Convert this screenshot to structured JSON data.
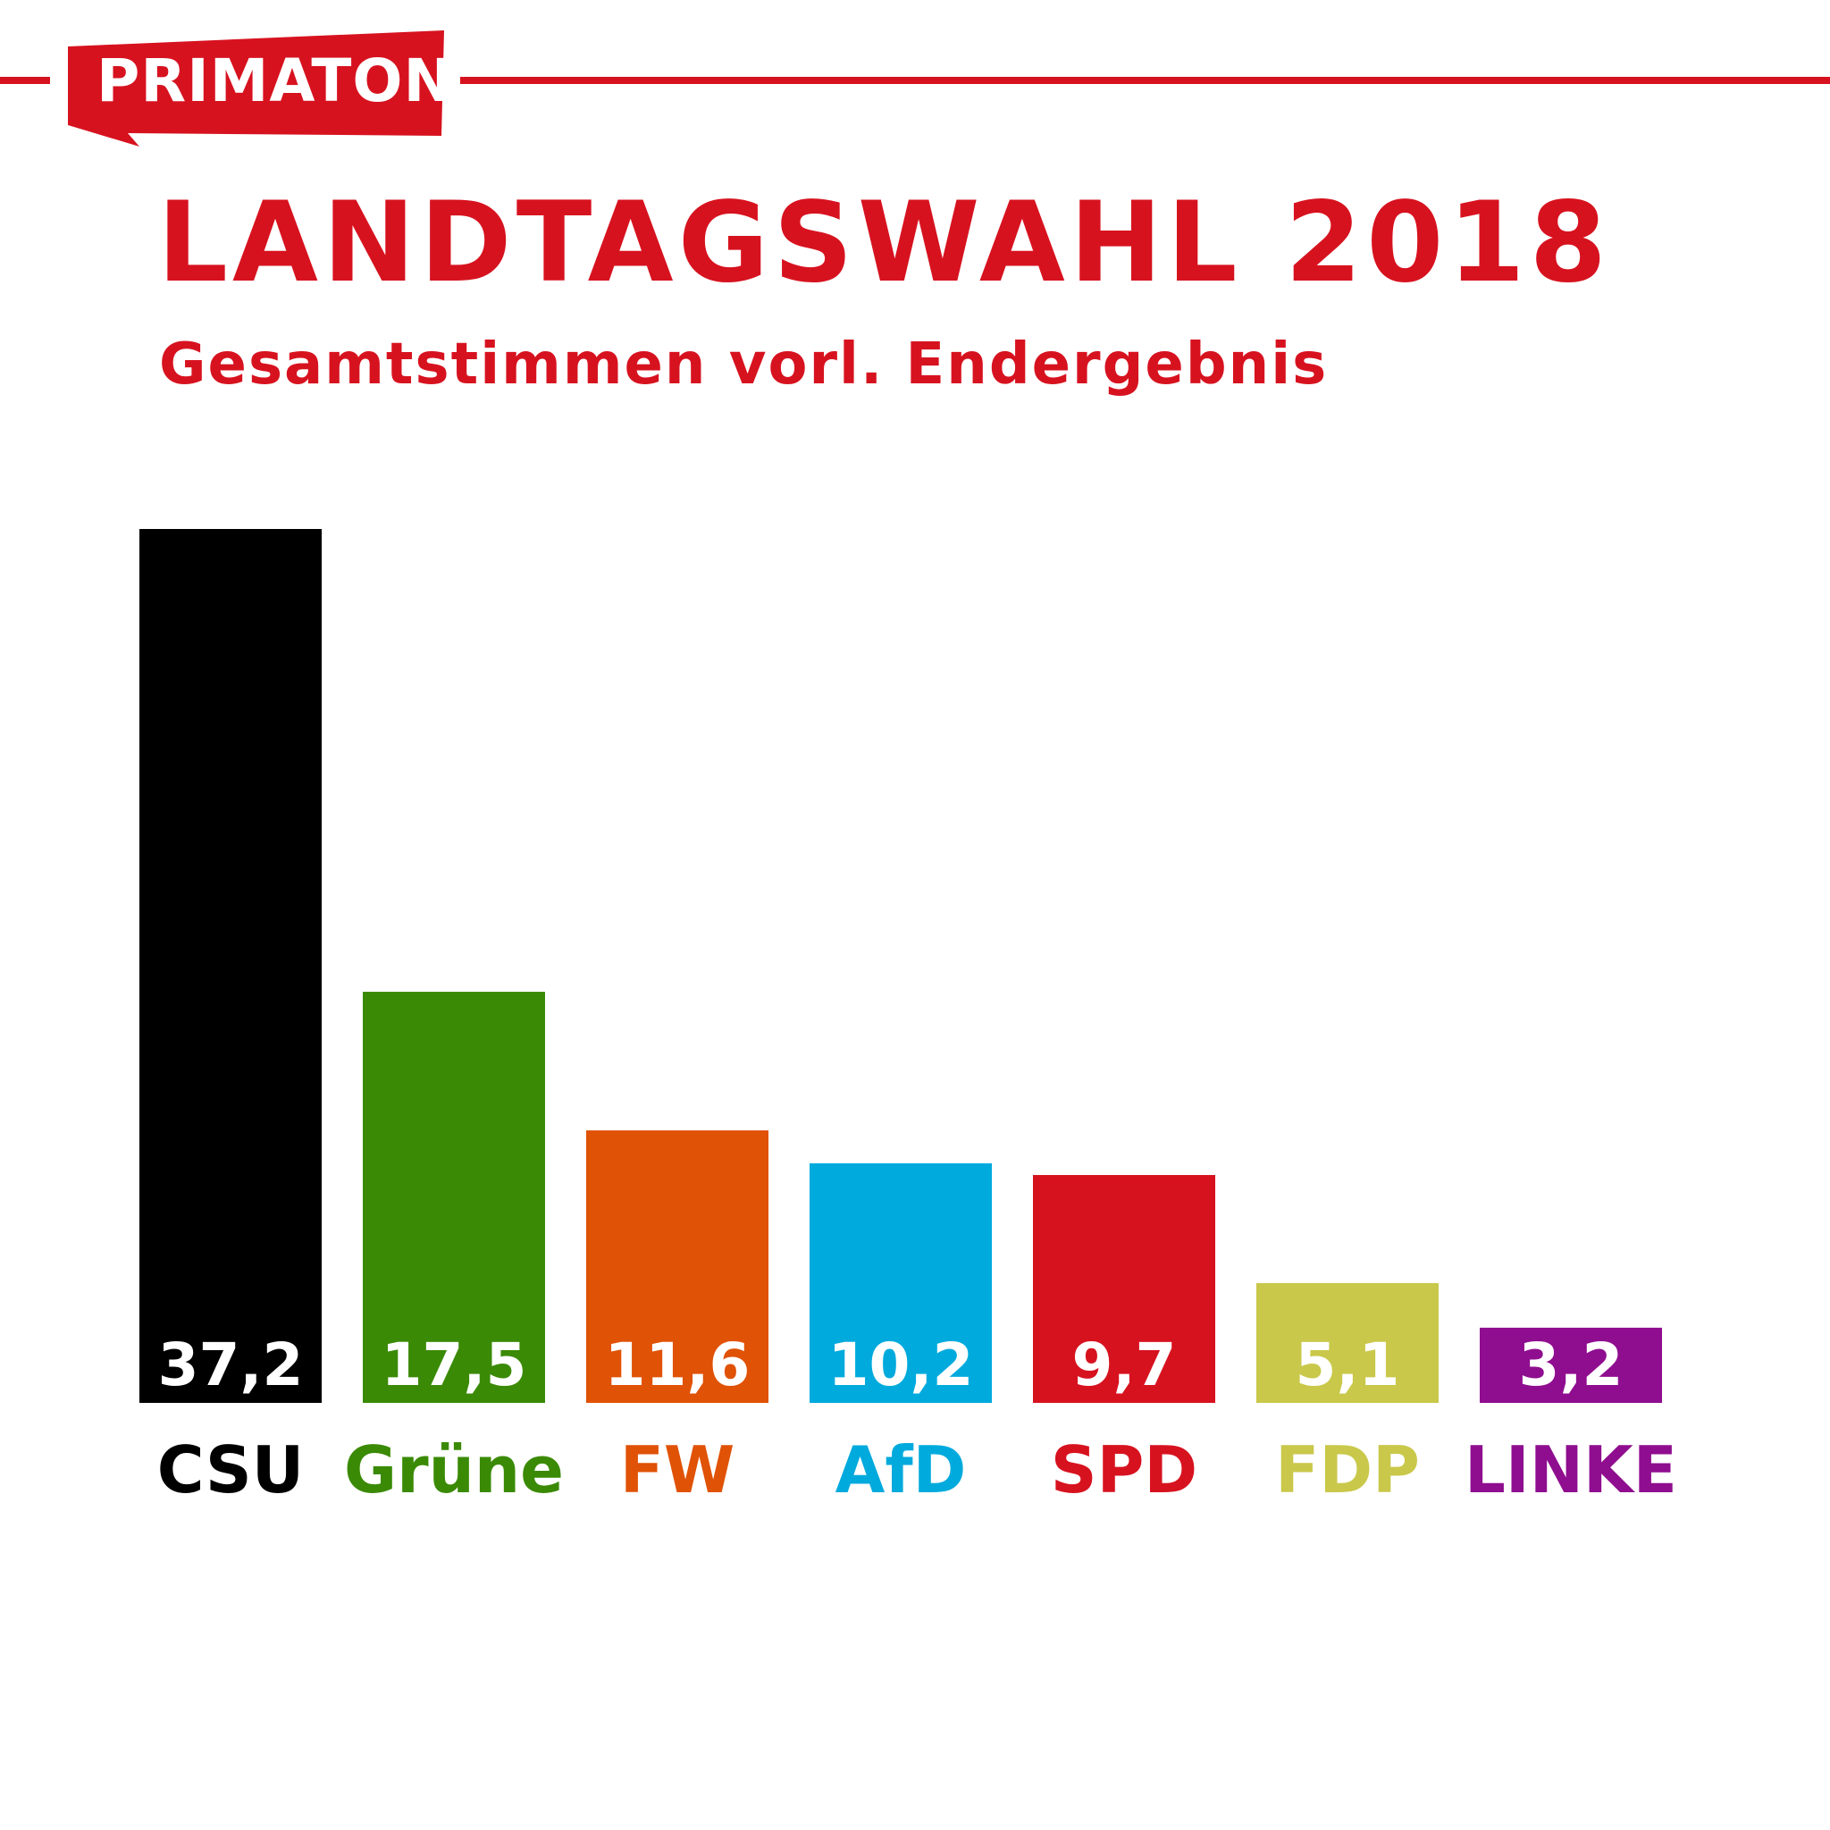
{
  "brand": {
    "name": "PRIMATON",
    "color": "#d7121f"
  },
  "header": {
    "title": "LANDTAGSWAHL 2018",
    "subtitle": "Gesamtstimmen vorl. Endergebnis"
  },
  "chart_data": {
    "type": "bar",
    "title": "LANDTAGSWAHL 2018",
    "subtitle": "Gesamtstimmen vorl. Endergebnis",
    "xlabel": "",
    "ylabel": "",
    "categories": [
      "CSU",
      "Grüne",
      "FW",
      "AfD",
      "SPD",
      "FDP",
      "LINKE"
    ],
    "values": [
      37.2,
      17.5,
      11.6,
      10.2,
      9.7,
      5.1,
      3.2
    ],
    "value_labels": [
      "37,2",
      "17,5",
      "11,6",
      "10,2",
      "9,7",
      "5,1",
      "3,2"
    ],
    "colors": [
      "#000000",
      "#3a8a05",
      "#e05206",
      "#00aadd",
      "#d7121f",
      "#c9c84a",
      "#8f0d8f"
    ],
    "ylim": [
      0,
      37.2
    ],
    "grid": false,
    "legend": "none"
  }
}
